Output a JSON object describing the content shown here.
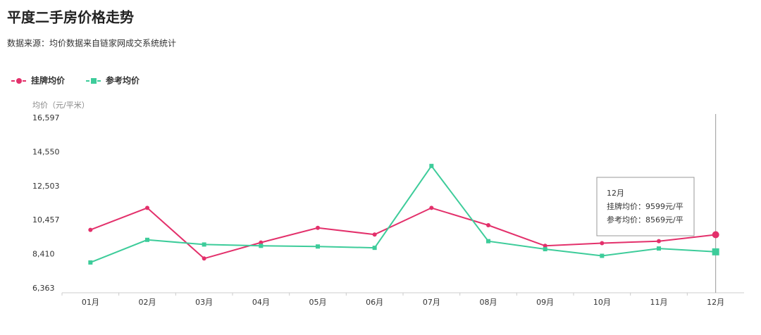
{
  "chart_data": {
    "type": "line",
    "title": "平度二手房价格走势",
    "subtitle": "数据来源：均价数据来自链家网成交系统统计",
    "y_label": "均价（元/平米）",
    "categories": [
      "01月",
      "02月",
      "03月",
      "04月",
      "05月",
      "06月",
      "07月",
      "08月",
      "09月",
      "10月",
      "11月",
      "12月"
    ],
    "series": [
      {
        "name": "挂牌均价",
        "color": "#e3306b",
        "marker": "circle",
        "values": [
          9890,
          11210,
          8170,
          9130,
          10010,
          9610,
          11210,
          10170,
          8930,
          9090,
          9210,
          9599
        ]
      },
      {
        "name": "参考均价",
        "color": "#3dcc9a",
        "marker": "square",
        "values": [
          7930,
          9290,
          9010,
          8930,
          8890,
          8810,
          13730,
          9210,
          8730,
          8330,
          8770,
          8569
        ]
      }
    ],
    "ylim": [
      6363,
      16597
    ],
    "yticks": [
      {
        "value": 6363,
        "label": "6,363"
      },
      {
        "value": 8410,
        "label": "8,410"
      },
      {
        "value": 10457,
        "label": "10,457"
      },
      {
        "value": 12503,
        "label": "12,503"
      },
      {
        "value": 14550,
        "label": "14,550"
      },
      {
        "value": 16597,
        "label": "16,597"
      }
    ],
    "grid": false,
    "legend": "top-left",
    "tooltip": {
      "title": "12月",
      "lines": [
        "挂牌均价：9599元/平",
        "参考均价：8569元/平"
      ]
    }
  }
}
